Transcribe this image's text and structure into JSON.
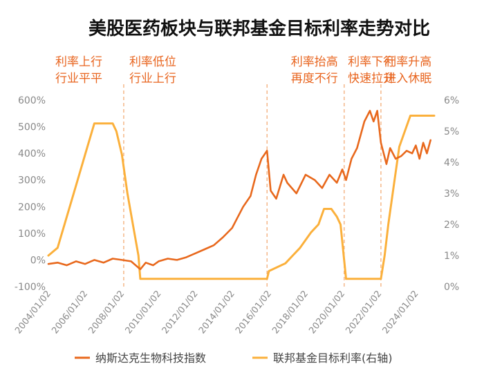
{
  "colors": {
    "nasdaq_biotech": "#e8681c",
    "fed_rate": "#fbb03b",
    "phase_text": "#e8641e",
    "phase_line": "#f2a46a",
    "axis_text": "#888888"
  },
  "chart_data": {
    "type": "line",
    "title": "美股医药板块与联邦基金目标利率走势对比",
    "xlabel": "",
    "ylabel_left": "",
    "ylabel_right": "",
    "x_range": [
      "2004/01/02",
      "2025/01/02"
    ],
    "x_ticks": [
      "2004/01/02",
      "2006/01/02",
      "2008/01/02",
      "2010/01/02",
      "2012/01/02",
      "2014/01/02",
      "2016/01/02",
      "2018/01/02",
      "2020/01/02",
      "2022/01/02",
      "2024/01/02"
    ],
    "y_left": {
      "min": -100,
      "max": 600,
      "ticks": [
        "-100%",
        "0%",
        "100%",
        "200%",
        "300%",
        "400%",
        "500%",
        "600%"
      ]
    },
    "y_right": {
      "min": 0,
      "max": 6,
      "ticks": [
        "0%",
        "1%",
        "2%",
        "3%",
        "4%",
        "5%",
        "6%"
      ]
    },
    "grid": false,
    "legend_position": "bottom",
    "phase_annotations": [
      {
        "lines": [
          "利率上行",
          "行业平平"
        ],
        "start_year": 2004.0
      },
      {
        "lines": [
          "利率低位",
          "行业上行"
        ],
        "start_year": 2008.1
      },
      {
        "lines": [
          "利率抬高",
          "再度不行"
        ],
        "start_year": 2016.9
      },
      {
        "lines": [
          "利率下行",
          "快速拉升"
        ],
        "start_year": 2020.0
      },
      {
        "lines": [
          "利率升高",
          "进入休眠"
        ],
        "start_year": 2022.0
      }
    ],
    "phase_dividers": [
      2008.1,
      2015.9,
      2020.1,
      2022.1
    ],
    "series": [
      {
        "name": "纳斯达克生物科技指数",
        "axis": "left",
        "x": [
          2004.0,
          2004.5,
          2005.0,
          2005.5,
          2006.0,
          2006.5,
          2007.0,
          2007.5,
          2008.0,
          2008.5,
          2009.0,
          2009.3,
          2009.7,
          2010.0,
          2010.5,
          2011.0,
          2011.5,
          2012.0,
          2012.5,
          2013.0,
          2013.5,
          2014.0,
          2014.3,
          2014.6,
          2015.0,
          2015.3,
          2015.6,
          2015.9,
          2016.1,
          2016.4,
          2016.8,
          2017.0,
          2017.5,
          2018.0,
          2018.5,
          2018.9,
          2019.3,
          2019.7,
          2020.0,
          2020.2,
          2020.5,
          2020.8,
          2021.0,
          2021.2,
          2021.5,
          2021.7,
          2021.9,
          2022.1,
          2022.4,
          2022.6,
          2022.9,
          2023.2,
          2023.5,
          2023.8,
          2024.0,
          2024.2,
          2024.4,
          2024.6,
          2024.8
        ],
        "values": [
          -15,
          -10,
          -20,
          -5,
          -15,
          0,
          -10,
          5,
          0,
          -5,
          -35,
          -10,
          -20,
          -5,
          5,
          0,
          10,
          25,
          40,
          55,
          85,
          120,
          160,
          200,
          240,
          320,
          380,
          410,
          260,
          230,
          320,
          290,
          250,
          320,
          300,
          270,
          320,
          290,
          340,
          300,
          380,
          420,
          470,
          520,
          560,
          520,
          560,
          440,
          360,
          420,
          380,
          390,
          410,
          400,
          430,
          380,
          440,
          400,
          450
        ]
      },
      {
        "name": "联邦基金目标利率(右轴)",
        "axis": "right",
        "x": [
          2004.0,
          2004.5,
          2005.0,
          2005.5,
          2006.0,
          2006.5,
          2007.0,
          2007.5,
          2007.7,
          2008.0,
          2008.3,
          2008.6,
          2008.9,
          2009.0,
          2015.9,
          2016.0,
          2016.9,
          2017.3,
          2017.7,
          2018.0,
          2018.3,
          2018.7,
          2019.0,
          2019.4,
          2019.7,
          2019.9,
          2020.2,
          2022.1,
          2022.3,
          2022.5,
          2022.8,
          2023.1,
          2023.4,
          2023.7,
          2024.6,
          2024.8,
          2025.0
        ],
        "values": [
          1.0,
          1.25,
          2.25,
          3.25,
          4.25,
          5.25,
          5.25,
          5.25,
          5.0,
          4.25,
          3.0,
          2.0,
          1.0,
          0.25,
          0.25,
          0.5,
          0.75,
          1.0,
          1.25,
          1.5,
          1.75,
          2.0,
          2.5,
          2.5,
          2.25,
          2.0,
          0.25,
          0.25,
          1.0,
          2.0,
          3.25,
          4.5,
          5.0,
          5.5,
          5.5,
          5.5,
          5.5
        ]
      }
    ]
  }
}
